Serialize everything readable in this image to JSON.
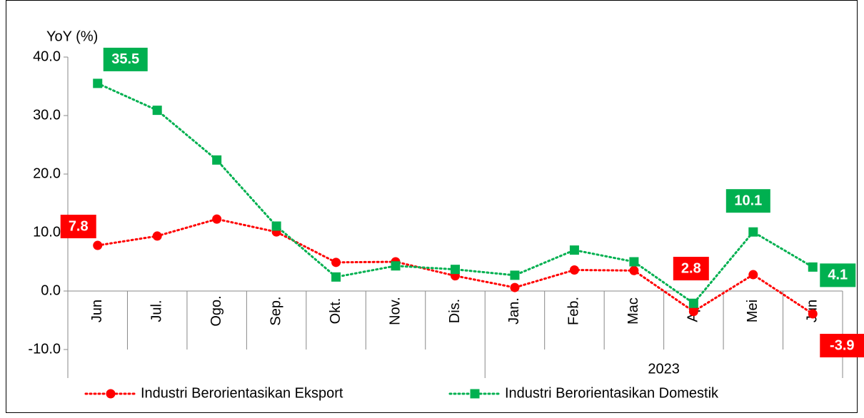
{
  "chart_data": {
    "type": "line",
    "y_label": "YoY (%)",
    "categories": [
      "Jun",
      "Jul.",
      "Ogo.",
      "Sep.",
      "Okt.",
      "Nov.",
      "Dis.",
      "Jan.",
      "Feb.",
      "Mac",
      "Apr",
      "Mei",
      "Jun"
    ],
    "group_label": "2023",
    "ylim": [
      -10,
      40
    ],
    "yticks": [
      {
        "value": -10,
        "label": "-10.0"
      },
      {
        "value": 0,
        "label": "0.0"
      },
      {
        "value": 10,
        "label": "10.0"
      },
      {
        "value": 20,
        "label": "20.0"
      },
      {
        "value": 30,
        "label": "30.0"
      },
      {
        "value": 40,
        "label": "40.0"
      }
    ],
    "grid": false,
    "legend": "bottom",
    "series": [
      {
        "name": "Industri Berorientasikan Eksport",
        "color": "#ff0000",
        "marker": "circle",
        "values": [
          7.8,
          9.4,
          12.3,
          10.1,
          4.9,
          5.0,
          2.6,
          0.6,
          3.6,
          3.5,
          -3.5,
          2.8,
          -3.9
        ],
        "value_labels": [
          "7.8",
          null,
          null,
          null,
          null,
          null,
          null,
          null,
          null,
          null,
          null,
          "2.8",
          "-3.9"
        ]
      },
      {
        "name": "Industri Berorientasikan Domestik",
        "color": "#00b050",
        "marker": "square",
        "values": [
          35.5,
          30.9,
          22.4,
          11.1,
          2.4,
          4.3,
          3.7,
          2.7,
          7.0,
          5.0,
          -2.1,
          10.1,
          4.1
        ],
        "value_labels": [
          "35.5",
          null,
          null,
          null,
          null,
          null,
          null,
          null,
          null,
          null,
          null,
          "10.1",
          "4.1"
        ]
      }
    ]
  }
}
